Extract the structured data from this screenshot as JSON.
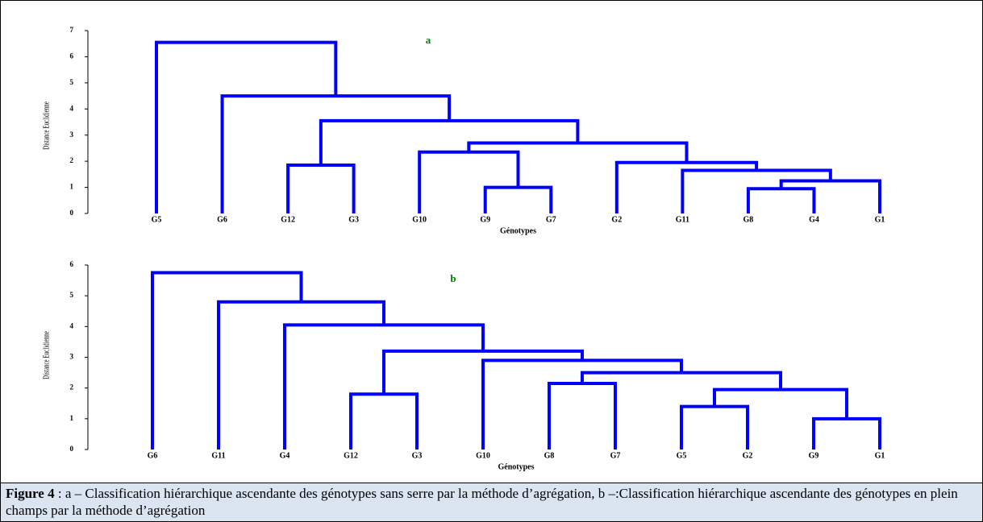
{
  "chart_data": [
    {
      "type": "dendrogram",
      "title": "a",
      "ylabel": "Distance Euclidienne",
      "xlabel": "Génotypes",
      "color": "#0000ff",
      "leaves": [
        "G5",
        "G6",
        "G12",
        "G3",
        "G10",
        "G9",
        "G7",
        "G2",
        "G11",
        "G8",
        "G4",
        "G1"
      ],
      "merges": [
        {
          "children": [
            5,
            6
          ],
          "height": 1.0
        },
        {
          "children": [
            9,
            10
          ],
          "height": 0.95
        },
        {
          "children": [
            13,
            11
          ],
          "height": 1.25
        },
        {
          "children": [
            8,
            14
          ],
          "height": 1.65
        },
        {
          "children": [
            7,
            15
          ],
          "height": 1.95
        },
        {
          "children": [
            2,
            3
          ],
          "height": 1.85
        },
        {
          "children": [
            4,
            12
          ],
          "height": 2.35
        },
        {
          "children": [
            18,
            16
          ],
          "height": 2.7
        },
        {
          "children": [
            17,
            19
          ],
          "height": 3.55
        },
        {
          "children": [
            1,
            20
          ],
          "height": 4.5
        },
        {
          "children": [
            0,
            21
          ],
          "height": 6.55
        }
      ],
      "ylim": [
        0,
        7
      ],
      "yticks": [
        0,
        1,
        2,
        3,
        4,
        5,
        6,
        7
      ]
    },
    {
      "type": "dendrogram",
      "title": "b",
      "ylabel": "Distance Euclidienne",
      "xlabel": "Génotypes",
      "color": "#0000ff",
      "leaves": [
        "G6",
        "G11",
        "G4",
        "G12",
        "G3",
        "G10",
        "G8",
        "G7",
        "G5",
        "G2",
        "G9",
        "G1"
      ],
      "merges": [
        {
          "children": [
            10,
            11
          ],
          "height": 1.0
        },
        {
          "children": [
            8,
            9
          ],
          "height": 1.4
        },
        {
          "children": [
            13,
            12
          ],
          "height": 1.95
        },
        {
          "children": [
            6,
            7
          ],
          "height": 2.15
        },
        {
          "children": [
            15,
            14
          ],
          "height": 2.5
        },
        {
          "children": [
            3,
            4
          ],
          "height": 1.8
        },
        {
          "children": [
            5,
            16
          ],
          "height": 2.9
        },
        {
          "children": [
            17,
            18
          ],
          "height": 3.2
        },
        {
          "children": [
            2,
            19
          ],
          "height": 4.05
        },
        {
          "children": [
            1,
            20
          ],
          "height": 4.8
        },
        {
          "children": [
            0,
            21
          ],
          "height": 5.75
        }
      ],
      "ylim": [
        0,
        6
      ],
      "yticks": [
        0,
        1,
        2,
        3,
        4,
        5,
        6
      ]
    }
  ],
  "caption": {
    "label": "Figure 4",
    "text": " : a – Classification hiérarchique ascendante des génotypes sans serre par la méthode d’agrégation, b –:Classification hiérarchique ascendante des génotypes en plein champs par la méthode d’agrégation"
  }
}
